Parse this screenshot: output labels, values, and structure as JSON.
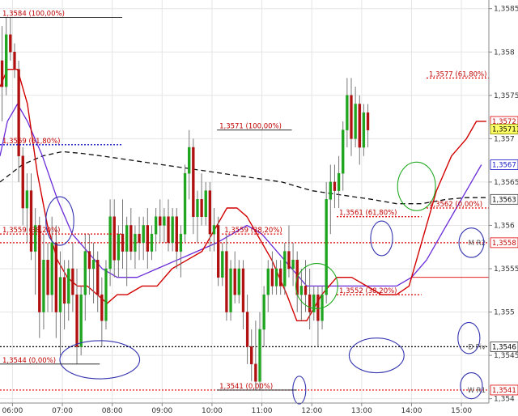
{
  "colors": {
    "up": "#1fa51f",
    "down": "#b01010",
    "ema_fast": "#d20000",
    "ema_slow": "#6a2bd9",
    "long_ma": "#111111",
    "blue_dotted": "#1515c8",
    "red_dotted": "#e00000",
    "black_dotted": "#000000",
    "annotation_text": "#c00000",
    "circle_blue": "#3333b0",
    "circle_green": "#22aa22",
    "price_badge": "#ffff66",
    "axis_text": "#333333",
    "grid": "#e5e5e5"
  },
  "chart_data": {
    "type": "candlestick",
    "instrument_title": "",
    "x_tick_labels": [
      "06:00",
      "07:00",
      "08:00",
      "09:00",
      "10:00",
      "11:00",
      "12:00",
      "13:00",
      "14:00",
      "15:00"
    ],
    "y_tick_labels": [
      "1,3585",
      "1,358",
      "1,3575",
      "1,357",
      "1,3565",
      "1,356",
      "1,3555",
      "1,355",
      "1,3545",
      "1,354"
    ],
    "ylim": [
      1.35395,
      1.3586
    ],
    "bars_per_hour": 12,
    "x_start_hour": 5.75,
    "x_end_hour": 15.55,
    "candles": [
      [
        1.3579,
        1.3583,
        1.3572,
        1.3576
      ],
      [
        1.3576,
        1.3584,
        1.3575,
        1.3582
      ],
      [
        1.3582,
        1.3584,
        1.3579,
        1.358
      ],
      [
        1.358,
        1.3581,
        1.3577,
        1.3578
      ],
      [
        1.3578,
        1.3579,
        1.3565,
        1.3568
      ],
      [
        1.3568,
        1.3569,
        1.356,
        1.3562
      ],
      [
        1.3562,
        1.3566,
        1.3558,
        1.3564
      ],
      [
        1.3564,
        1.3566,
        1.3556,
        1.3557
      ],
      [
        1.3557,
        1.3562,
        1.3552,
        1.356
      ],
      [
        1.356,
        1.3561,
        1.3547,
        1.355
      ],
      [
        1.355,
        1.3559,
        1.3548,
        1.3556
      ],
      [
        1.3556,
        1.3558,
        1.355,
        1.3552
      ],
      [
        1.3552,
        1.3561,
        1.355,
        1.3558
      ],
      [
        1.3558,
        1.356,
        1.3547,
        1.355
      ],
      [
        1.355,
        1.3557,
        1.3545,
        1.3554
      ],
      [
        1.3554,
        1.3556,
        1.3548,
        1.3551
      ],
      [
        1.3551,
        1.3556,
        1.3549,
        1.3555
      ],
      [
        1.3555,
        1.3558,
        1.355,
        1.3552
      ],
      [
        1.3552,
        1.3555,
        1.3544,
        1.3546
      ],
      [
        1.3546,
        1.3553,
        1.3545,
        1.3552
      ],
      [
        1.3552,
        1.3559,
        1.3549,
        1.3557
      ],
      [
        1.3557,
        1.3559,
        1.3552,
        1.3555
      ],
      [
        1.3555,
        1.3558,
        1.3551,
        1.3556
      ],
      [
        1.3556,
        1.3557,
        1.355,
        1.3552
      ],
      [
        1.3552,
        1.3554,
        1.3546,
        1.3549
      ],
      [
        1.3549,
        1.3556,
        1.3548,
        1.3555
      ],
      [
        1.3555,
        1.3563,
        1.3553,
        1.3561
      ],
      [
        1.3561,
        1.3563,
        1.3554,
        1.3556
      ],
      [
        1.3556,
        1.356,
        1.3554,
        1.3559
      ],
      [
        1.3559,
        1.3563,
        1.3555,
        1.3557
      ],
      [
        1.3557,
        1.3561,
        1.3553,
        1.356
      ],
      [
        1.356,
        1.3562,
        1.3556,
        1.3557
      ],
      [
        1.3557,
        1.356,
        1.3555,
        1.3559
      ],
      [
        1.3559,
        1.3561,
        1.3556,
        1.3558
      ],
      [
        1.3558,
        1.3561,
        1.3556,
        1.356
      ],
      [
        1.356,
        1.3562,
        1.3555,
        1.3557
      ],
      [
        1.3557,
        1.356,
        1.3556,
        1.3559
      ],
      [
        1.3559,
        1.3562,
        1.3557,
        1.3561
      ],
      [
        1.3561,
        1.3563,
        1.3558,
        1.356
      ],
      [
        1.356,
        1.3562,
        1.3558,
        1.3561
      ],
      [
        1.3561,
        1.3563,
        1.3557,
        1.3558
      ],
      [
        1.3558,
        1.3562,
        1.3557,
        1.3561
      ],
      [
        1.3561,
        1.3562,
        1.3555,
        1.3557
      ],
      [
        1.3557,
        1.356,
        1.3554,
        1.3559
      ],
      [
        1.3559,
        1.3567,
        1.3558,
        1.3566
      ],
      [
        1.3566,
        1.3571,
        1.3563,
        1.3569
      ],
      [
        1.3569,
        1.357,
        1.3559,
        1.3561
      ],
      [
        1.3561,
        1.3564,
        1.3558,
        1.3563
      ],
      [
        1.3563,
        1.3566,
        1.356,
        1.3561
      ],
      [
        1.3561,
        1.3565,
        1.356,
        1.3564
      ],
      [
        1.3564,
        1.3565,
        1.3557,
        1.3559
      ],
      [
        1.3559,
        1.3562,
        1.3557,
        1.356
      ],
      [
        1.356,
        1.3561,
        1.3553,
        1.3554
      ],
      [
        1.3554,
        1.3558,
        1.3553,
        1.3557
      ],
      [
        1.3557,
        1.3559,
        1.3549,
        1.355
      ],
      [
        1.355,
        1.3556,
        1.3549,
        1.3555
      ],
      [
        1.3555,
        1.3557,
        1.3551,
        1.3552
      ],
      [
        1.3552,
        1.3556,
        1.3551,
        1.3555
      ],
      [
        1.3555,
        1.3556,
        1.3548,
        1.355
      ],
      [
        1.355,
        1.3552,
        1.3544,
        1.3546
      ],
      [
        1.3546,
        1.3548,
        1.3542,
        1.3544
      ],
      [
        1.3544,
        1.3549,
        1.3541,
        1.3542
      ],
      [
        1.3542,
        1.355,
        1.3541,
        1.3548
      ],
      [
        1.3548,
        1.3553,
        1.3546,
        1.3552
      ],
      [
        1.3552,
        1.3556,
        1.355,
        1.3555
      ],
      [
        1.3555,
        1.3557,
        1.3552,
        1.3553
      ],
      [
        1.3553,
        1.3556,
        1.3552,
        1.3555
      ],
      [
        1.3555,
        1.3556,
        1.3552,
        1.3553
      ],
      [
        1.3553,
        1.3558,
        1.3552,
        1.3557
      ],
      [
        1.3557,
        1.356,
        1.3554,
        1.3555
      ],
      [
        1.3555,
        1.3558,
        1.3553,
        1.3556
      ],
      [
        1.3556,
        1.3557,
        1.355,
        1.3552
      ],
      [
        1.3552,
        1.3555,
        1.3549,
        1.3553
      ],
      [
        1.3553,
        1.3556,
        1.355,
        1.3552
      ],
      [
        1.3552,
        1.3555,
        1.3548,
        1.355
      ],
      [
        1.355,
        1.3553,
        1.3549,
        1.3552
      ],
      [
        1.3552,
        1.3553,
        1.3546,
        1.3549
      ],
      [
        1.3549,
        1.3553,
        1.3548,
        1.3552
      ],
      [
        1.3552,
        1.3565,
        1.3551,
        1.3563
      ],
      [
        1.3563,
        1.3567,
        1.3559,
        1.3565
      ],
      [
        1.3565,
        1.3567,
        1.3562,
        1.3564
      ],
      [
        1.3564,
        1.3568,
        1.3562,
        1.3566
      ],
      [
        1.3566,
        1.3572,
        1.3564,
        1.3571
      ],
      [
        1.3571,
        1.3577,
        1.3569,
        1.3575
      ],
      [
        1.3575,
        1.3577,
        1.3568,
        1.357
      ],
      [
        1.357,
        1.3576,
        1.3569,
        1.3574
      ],
      [
        1.3574,
        1.3575,
        1.3567,
        1.3569
      ],
      [
        1.3569,
        1.3574,
        1.3568,
        1.3573
      ],
      [
        1.3573,
        1.3574,
        1.3569,
        1.3571
      ]
    ],
    "ema_fast": [
      [
        5.75,
        1.3576
      ],
      [
        5.9,
        1.3578
      ],
      [
        6.1,
        1.3578
      ],
      [
        6.3,
        1.3574
      ],
      [
        6.5,
        1.3566
      ],
      [
        6.7,
        1.356
      ],
      [
        6.9,
        1.3556
      ],
      [
        7.1,
        1.3554
      ],
      [
        7.3,
        1.3553
      ],
      [
        7.5,
        1.3553
      ],
      [
        7.7,
        1.3552
      ],
      [
        7.9,
        1.3551
      ],
      [
        8.1,
        1.3552
      ],
      [
        8.3,
        1.3552
      ],
      [
        8.6,
        1.3553
      ],
      [
        8.9,
        1.3553
      ],
      [
        9.2,
        1.3555
      ],
      [
        9.5,
        1.3556
      ],
      [
        9.8,
        1.3557
      ],
      [
        10.1,
        1.356
      ],
      [
        10.3,
        1.3562
      ],
      [
        10.5,
        1.3562
      ],
      [
        10.7,
        1.3561
      ],
      [
        10.9,
        1.3559
      ],
      [
        11.2,
        1.3556
      ],
      [
        11.5,
        1.3552
      ],
      [
        11.7,
        1.3549
      ],
      [
        11.9,
        1.3549
      ],
      [
        12.2,
        1.3552
      ],
      [
        12.5,
        1.3554
      ],
      [
        12.8,
        1.3554
      ],
      [
        13.1,
        1.3553
      ],
      [
        13.4,
        1.3552
      ],
      [
        13.7,
        1.3552
      ],
      [
        13.95,
        1.3553
      ],
      [
        14.2,
        1.3558
      ],
      [
        14.5,
        1.3564
      ],
      [
        14.8,
        1.3568
      ],
      [
        15.1,
        1.357
      ],
      [
        15.3,
        1.3572
      ],
      [
        15.5,
        1.3572
      ]
    ],
    "ema_slow": [
      [
        5.75,
        1.3568
      ],
      [
        5.9,
        1.3572
      ],
      [
        6.1,
        1.3574
      ],
      [
        6.3,
        1.3572
      ],
      [
        6.6,
        1.3568
      ],
      [
        6.9,
        1.3563
      ],
      [
        7.2,
        1.3559
      ],
      [
        7.5,
        1.3557
      ],
      [
        7.8,
        1.3555
      ],
      [
        8.1,
        1.3554
      ],
      [
        8.5,
        1.3554
      ],
      [
        8.9,
        1.3555
      ],
      [
        9.3,
        1.3556
      ],
      [
        9.7,
        1.3557
      ],
      [
        10.1,
        1.3558
      ],
      [
        10.4,
        1.3559
      ],
      [
        10.7,
        1.356
      ],
      [
        11.0,
        1.3559
      ],
      [
        11.3,
        1.3557
      ],
      [
        11.6,
        1.3555
      ],
      [
        11.9,
        1.3553
      ],
      [
        12.2,
        1.3553
      ],
      [
        12.5,
        1.3553
      ],
      [
        12.8,
        1.3553
      ],
      [
        13.1,
        1.3553
      ],
      [
        13.4,
        1.3553
      ],
      [
        13.7,
        1.3553
      ],
      [
        14.0,
        1.3554
      ],
      [
        14.3,
        1.3556
      ],
      [
        14.6,
        1.3559
      ],
      [
        14.9,
        1.3562
      ],
      [
        15.2,
        1.3565
      ],
      [
        15.4,
        1.3567
      ]
    ],
    "long_ma": [
      [
        5.75,
        1.3565
      ],
      [
        6.2,
        1.3567
      ],
      [
        6.6,
        1.3568
      ],
      [
        7.0,
        1.35685
      ],
      [
        7.4,
        1.35683
      ],
      [
        7.8,
        1.3568
      ],
      [
        8.4,
        1.35675
      ],
      [
        9.0,
        1.3567
      ],
      [
        9.6,
        1.35665
      ],
      [
        10.2,
        1.3566
      ],
      [
        10.8,
        1.35655
      ],
      [
        11.4,
        1.3565
      ],
      [
        12.0,
        1.3564
      ],
      [
        12.6,
        1.35635
      ],
      [
        13.2,
        1.3563
      ],
      [
        13.7,
        1.35625
      ],
      [
        14.2,
        1.35625
      ],
      [
        14.7,
        1.3563
      ],
      [
        15.1,
        1.35632
      ],
      [
        15.5,
        1.35632
      ]
    ],
    "annotations": [
      {
        "text": "1,3584 (100,00%)",
        "price": 1.3584,
        "from_hour": 5.75,
        "to_hour": 8.2,
        "style": "solid-black"
      },
      {
        "text": "1,3569 (61,80%)",
        "price": 1.35693,
        "from_hour": 5.75,
        "to_hour": 8.2,
        "style": "dotted-blue"
      },
      {
        "text": "1,3559 (38,20%)",
        "price": 1.3559,
        "from_hour": 5.75,
        "to_hour": 8.2,
        "style": "dotted-red"
      },
      {
        "text": "1,3544 (0,00%)",
        "price": 1.3544,
        "from_hour": 5.75,
        "to_hour": 7.75,
        "style": "solid-black"
      },
      {
        "text": "1,3571 (100,00%)",
        "price": 1.3571,
        "from_hour": 10.1,
        "to_hour": 11.6,
        "style": "solid-black"
      },
      {
        "text": "1,3559 (38,20%)",
        "price": 1.3559,
        "from_hour": 10.2,
        "to_hour": 11.4,
        "style": "dotted-red"
      },
      {
        "text": "1,3541 (0,00%)",
        "price": 1.3541,
        "from_hour": 10.1,
        "to_hour": 11.7,
        "style": "solid-black"
      },
      {
        "text": "1,3561 (61,80%)",
        "price": 1.3561,
        "from_hour": 12.5,
        "to_hour": 14.2,
        "style": "dotted-red"
      },
      {
        "text": "1,3552 (38,20%)",
        "price": 1.3552,
        "from_hour": 12.5,
        "to_hour": 14.2,
        "style": "dotted-red"
      },
      {
        "text": "1,3577 (61,80%)",
        "price": 1.3577,
        "from_hour": 14.3,
        "to_hour": 15.55,
        "style": "dotted-red"
      },
      {
        "text": "1,3562 (0,00%)",
        "price": 1.3562,
        "from_hour": 14.3,
        "to_hour": 15.55,
        "style": "dotted-red"
      }
    ],
    "levels": [
      {
        "label": "M R2",
        "price": 1.3558,
        "style": "dotted-red"
      },
      {
        "label": "D Piv",
        "price": 1.3546,
        "style": "dotted-black"
      },
      {
        "label": "W R1",
        "price": 1.3541,
        "style": "dotted-red"
      },
      {
        "label": "",
        "price": 1.3554,
        "style": "thin-red",
        "from_hour": 14.0
      }
    ],
    "axis_markers": [
      {
        "text": "1,3572",
        "price": 1.3572,
        "style": "boxed-red"
      },
      {
        "text": "1,35711",
        "price": 1.35711,
        "style": "boxed-yellow"
      },
      {
        "text": "1,3567",
        "price": 1.3567,
        "style": "boxed-blue"
      },
      {
        "text": "1,3563",
        "price": 1.3563,
        "style": "boxed-black"
      },
      {
        "text": "1,3558",
        "price": 1.3558,
        "style": "boxed-red"
      },
      {
        "text": "1,3546",
        "price": 1.3546,
        "style": "boxed-black"
      },
      {
        "text": "1,3541",
        "price": 1.3541,
        "style": "boxed-red"
      }
    ],
    "circles": [
      {
        "name": "circle-0630-low",
        "hour": 6.95,
        "price": 1.35605,
        "rx_hours": 0.28,
        "ry_price": 0.00028,
        "color": "blue"
      },
      {
        "name": "circle-0730-low",
        "hour": 7.75,
        "price": 1.35445,
        "rx_hours": 0.8,
        "ry_price": 0.00022,
        "color": "blue"
      },
      {
        "name": "circle-1140-low",
        "hour": 11.75,
        "price": 1.3541,
        "rx_hours": 0.13,
        "ry_price": 0.00016,
        "color": "blue"
      },
      {
        "name": "circle-1210-green",
        "hour": 12.1,
        "price": 1.3553,
        "rx_hours": 0.42,
        "ry_price": 0.00026,
        "color": "green"
      },
      {
        "name": "circle-1320-blue",
        "hour": 13.4,
        "price": 1.35585,
        "rx_hours": 0.22,
        "ry_price": 0.0002,
        "color": "blue"
      },
      {
        "name": "circle-1300-low",
        "hour": 13.3,
        "price": 1.3545,
        "rx_hours": 0.55,
        "ry_price": 0.0002,
        "color": "blue"
      },
      {
        "name": "circle-1410-green",
        "hour": 14.1,
        "price": 1.35645,
        "rx_hours": 0.38,
        "ry_price": 0.00028,
        "color": "green"
      },
      {
        "name": "circle-mr2",
        "hour": 15.2,
        "price": 1.3558,
        "rx_hours": 0.25,
        "ry_price": 0.00017,
        "color": "blue"
      },
      {
        "name": "circle-dpiv",
        "hour": 15.15,
        "price": 1.3547,
        "rx_hours": 0.22,
        "ry_price": 0.00018,
        "color": "blue"
      },
      {
        "name": "circle-wr1",
        "hour": 15.2,
        "price": 1.35415,
        "rx_hours": 0.22,
        "ry_price": 0.00015,
        "color": "blue"
      }
    ],
    "grid": true
  }
}
